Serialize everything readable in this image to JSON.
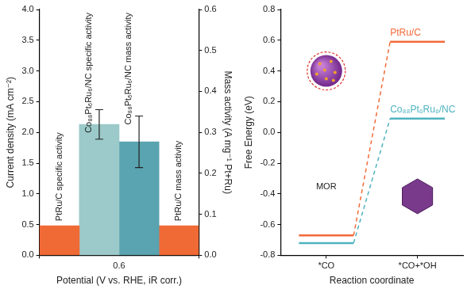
{
  "chart_data": [
    {
      "type": "bar",
      "categories": [
        "0.6"
      ],
      "x_label": "Potential (V vs. RHE, iR corr.)",
      "y_label": "Current density (mA cm⁻²)",
      "y2_label": "Mass activity (A mg⁻¹ Pt+Ru)",
      "ylim": [
        0,
        4
      ],
      "yticks": [
        {
          "value": 0,
          "label": "0.0"
        },
        0.5,
        {
          "value": 1,
          "label": "1.0"
        },
        1.5,
        {
          "value": 2,
          "label": "2.0"
        },
        2.5,
        {
          "value": 3,
          "label": "3.0"
        },
        3.5,
        {
          "value": 4,
          "label": "4.0"
        }
      ],
      "y2lim": [
        0,
        0.6
      ],
      "y2ticks": [
        {
          "value": 0,
          "label": "0.0"
        },
        0.1,
        0.2,
        0.3,
        0.4,
        0.5,
        0.6
      ],
      "grid": false,
      "series": [
        {
          "name": "PtRu/C specific activity",
          "color": "#f06a35",
          "values": [
            0.48
          ]
        },
        {
          "name": "Co₈₈Pt₆Ru₆/NC specific activity",
          "color": "#9cc9c9",
          "values": [
            2.13
          ],
          "errors": [
            0.24
          ]
        },
        {
          "name": "Co₈₈Pt₆Ru₆/NC mass activity",
          "color": "#5aa3b0",
          "values": [
            0.277
          ],
          "errors": [
            0.063
          ],
          "axis": "y2"
        },
        {
          "name": "PtRu/C mass activity",
          "color": "#f06a35",
          "values": [
            0.072
          ],
          "axis": "y2"
        }
      ]
    },
    {
      "type": "line",
      "categories": [
        "*CO",
        "*CO+*OH"
      ],
      "x_label": "Reaction coordinate",
      "y_label": "Free Energy (eV)",
      "ylim": [
        -0.8,
        0.8
      ],
      "yticks": [
        -0.8,
        -0.6,
        -0.4,
        -0.2,
        {
          "value": 0,
          "label": "0.0"
        },
        0.2,
        0.4,
        0.6,
        0.8
      ],
      "grid": false,
      "series": [
        {
          "name": "PtRu/C",
          "color": "#f26b3a",
          "values": [
            -0.67,
            0.59
          ]
        },
        {
          "name": "Co₈₈Pt₆Ru₆/NC",
          "color": "#4fb3bf",
          "values": [
            -0.72,
            0.09
          ]
        }
      ],
      "annotations": [
        {
          "text": "MOR"
        }
      ]
    }
  ]
}
